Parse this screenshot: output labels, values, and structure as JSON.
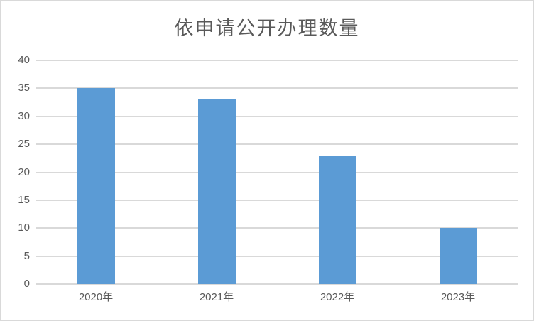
{
  "chart_data": {
    "type": "bar",
    "title": "依申请公开办理数量",
    "categories": [
      "2020年",
      "2021年",
      "2022年",
      "2023年"
    ],
    "values": [
      35,
      33,
      23,
      10
    ],
    "xlabel": "",
    "ylabel": "",
    "ylim": [
      0,
      40
    ],
    "ytick_step": 5,
    "yticks": [
      0,
      5,
      10,
      15,
      20,
      25,
      30,
      35,
      40
    ],
    "grid": true,
    "legend": false,
    "bar_color": "#5B9BD5",
    "gridline_color": "#D9D9D9",
    "text_color": "#595959",
    "border_color": "#D9D9D9",
    "background_color": "#FFFFFF"
  }
}
